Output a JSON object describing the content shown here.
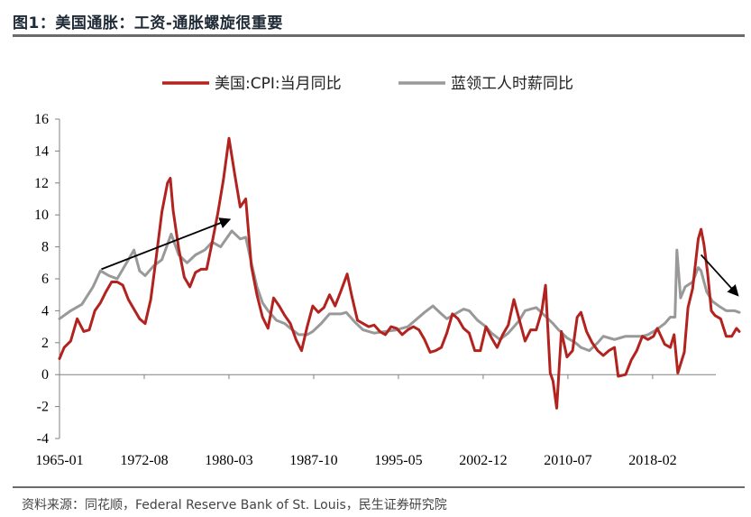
{
  "header": {
    "title": "图1：美国通胀：工资-通胀螺旋很重要"
  },
  "footer": {
    "source": "资料来源：同花顺，Federal Reserve Bank of St. Louis，民生证券研究院"
  },
  "colors": {
    "cpi": "#b2231f",
    "wage": "#999999",
    "arrow": "#000000"
  },
  "chart_data": {
    "type": "line",
    "title": "",
    "xlabel": "",
    "ylabel": "",
    "ylim": [
      -4,
      16
    ],
    "yticks": [
      -4,
      -2,
      0,
      2,
      4,
      6,
      8,
      10,
      12,
      14,
      16
    ],
    "xlim": [
      "1965-01",
      "2023-06"
    ],
    "xticks": [
      "1965-01",
      "1972-08",
      "1980-03",
      "1987-10",
      "1995-05",
      "2002-12",
      "2010-07",
      "2018-02"
    ],
    "legend": "top",
    "grid": false,
    "series": [
      {
        "name": "美国:CPI:当月同比",
        "color": "#b2231f",
        "points": [
          [
            "1965-01",
            1.0
          ],
          [
            "1965-06",
            1.7
          ],
          [
            "1966-01",
            2.1
          ],
          [
            "1966-08",
            3.5
          ],
          [
            "1967-03",
            2.7
          ],
          [
            "1967-09",
            2.8
          ],
          [
            "1968-03",
            4.0
          ],
          [
            "1968-09",
            4.5
          ],
          [
            "1969-03",
            5.2
          ],
          [
            "1969-09",
            5.8
          ],
          [
            "1970-03",
            5.8
          ],
          [
            "1970-09",
            5.6
          ],
          [
            "1971-03",
            4.7
          ],
          [
            "1971-09",
            4.1
          ],
          [
            "1972-03",
            3.5
          ],
          [
            "1972-09",
            3.2
          ],
          [
            "1973-03",
            4.7
          ],
          [
            "1973-09",
            7.4
          ],
          [
            "1974-03",
            10.2
          ],
          [
            "1974-09",
            12.0
          ],
          [
            "1974-12",
            12.3
          ],
          [
            "1975-03",
            10.3
          ],
          [
            "1975-09",
            7.9
          ],
          [
            "1976-03",
            6.1
          ],
          [
            "1976-09",
            5.5
          ],
          [
            "1977-03",
            6.4
          ],
          [
            "1977-09",
            6.6
          ],
          [
            "1978-03",
            6.6
          ],
          [
            "1978-09",
            8.3
          ],
          [
            "1979-03",
            10.1
          ],
          [
            "1979-09",
            12.2
          ],
          [
            "1980-03",
            14.8
          ],
          [
            "1980-09",
            12.6
          ],
          [
            "1981-03",
            10.5
          ],
          [
            "1981-09",
            11.0
          ],
          [
            "1982-03",
            6.8
          ],
          [
            "1982-09",
            5.0
          ],
          [
            "1983-03",
            3.6
          ],
          [
            "1983-09",
            2.9
          ],
          [
            "1984-03",
            4.8
          ],
          [
            "1984-09",
            4.3
          ],
          [
            "1985-03",
            3.7
          ],
          [
            "1985-09",
            3.2
          ],
          [
            "1986-03",
            2.2
          ],
          [
            "1986-09",
            1.5
          ],
          [
            "1987-03",
            3.0
          ],
          [
            "1987-09",
            4.3
          ],
          [
            "1988-03",
            3.9
          ],
          [
            "1988-09",
            4.2
          ],
          [
            "1989-03",
            5.0
          ],
          [
            "1989-09",
            4.3
          ],
          [
            "1990-03",
            5.2
          ],
          [
            "1990-10",
            6.3
          ],
          [
            "1991-03",
            4.9
          ],
          [
            "1991-09",
            3.4
          ],
          [
            "1992-03",
            3.2
          ],
          [
            "1992-09",
            3.0
          ],
          [
            "1993-03",
            3.1
          ],
          [
            "1993-09",
            2.7
          ],
          [
            "1994-03",
            2.5
          ],
          [
            "1994-09",
            3.0
          ],
          [
            "1995-03",
            2.9
          ],
          [
            "1995-09",
            2.5
          ],
          [
            "1996-03",
            2.8
          ],
          [
            "1996-09",
            3.0
          ],
          [
            "1997-03",
            2.8
          ],
          [
            "1997-09",
            2.2
          ],
          [
            "1998-03",
            1.4
          ],
          [
            "1998-09",
            1.5
          ],
          [
            "1999-03",
            1.7
          ],
          [
            "1999-09",
            2.6
          ],
          [
            "2000-03",
            3.8
          ],
          [
            "2000-09",
            3.5
          ],
          [
            "2001-03",
            2.9
          ],
          [
            "2001-09",
            2.6
          ],
          [
            "2002-03",
            1.5
          ],
          [
            "2002-09",
            1.5
          ],
          [
            "2003-03",
            3.0
          ],
          [
            "2003-09",
            2.3
          ],
          [
            "2004-03",
            1.7
          ],
          [
            "2004-09",
            2.5
          ],
          [
            "2005-03",
            3.1
          ],
          [
            "2005-09",
            4.7
          ],
          [
            "2006-03",
            3.4
          ],
          [
            "2006-09",
            2.1
          ],
          [
            "2007-03",
            2.8
          ],
          [
            "2007-09",
            2.8
          ],
          [
            "2008-03",
            4.0
          ],
          [
            "2008-07",
            5.6
          ],
          [
            "2008-12",
            0.1
          ],
          [
            "2009-03",
            -0.4
          ],
          [
            "2009-07",
            -2.1
          ],
          [
            "2009-12",
            2.7
          ],
          [
            "2010-06",
            1.1
          ],
          [
            "2010-12",
            1.5
          ],
          [
            "2011-05",
            3.6
          ],
          [
            "2011-09",
            3.9
          ],
          [
            "2012-03",
            2.7
          ],
          [
            "2012-09",
            2.0
          ],
          [
            "2013-03",
            1.5
          ],
          [
            "2013-09",
            1.2
          ],
          [
            "2014-03",
            1.5
          ],
          [
            "2014-09",
            1.7
          ],
          [
            "2015-01",
            -0.1
          ],
          [
            "2015-09",
            0.0
          ],
          [
            "2016-03",
            0.9
          ],
          [
            "2016-09",
            1.5
          ],
          [
            "2017-03",
            2.4
          ],
          [
            "2017-09",
            2.2
          ],
          [
            "2018-03",
            2.4
          ],
          [
            "2018-07",
            2.9
          ],
          [
            "2019-03",
            1.9
          ],
          [
            "2019-09",
            1.7
          ],
          [
            "2020-01",
            2.5
          ],
          [
            "2020-05",
            0.1
          ],
          [
            "2020-12",
            1.4
          ],
          [
            "2021-04",
            4.2
          ],
          [
            "2021-09",
            5.4
          ],
          [
            "2022-03",
            8.5
          ],
          [
            "2022-06",
            9.1
          ],
          [
            "2022-09",
            8.2
          ],
          [
            "2023-01",
            6.4
          ],
          [
            "2023-05",
            4.0
          ],
          [
            "2023-09",
            3.7
          ],
          [
            "2024-03",
            3.5
          ],
          [
            "2024-09",
            2.4
          ],
          [
            "2025-03",
            2.4
          ],
          [
            "2025-08",
            2.9
          ],
          [
            "2025-11",
            2.7
          ]
        ]
      },
      {
        "name": "蓝领工人时薪同比",
        "color": "#999999",
        "points": [
          [
            "1965-01",
            3.5
          ],
          [
            "1966-01",
            4.0
          ],
          [
            "1967-01",
            4.4
          ],
          [
            "1968-01",
            5.5
          ],
          [
            "1968-09",
            6.5
          ],
          [
            "1969-06",
            6.2
          ],
          [
            "1970-03",
            6.0
          ],
          [
            "1971-01",
            7.0
          ],
          [
            "1971-09",
            7.8
          ],
          [
            "1972-03",
            6.5
          ],
          [
            "1972-09",
            6.2
          ],
          [
            "1973-06",
            6.8
          ],
          [
            "1974-03",
            7.2
          ],
          [
            "1975-01",
            8.8
          ],
          [
            "1975-09",
            7.5
          ],
          [
            "1976-06",
            7.0
          ],
          [
            "1977-03",
            7.5
          ],
          [
            "1978-01",
            7.8
          ],
          [
            "1978-09",
            8.3
          ],
          [
            "1979-06",
            8.0
          ],
          [
            "1980-06",
            9.0
          ],
          [
            "1981-03",
            8.5
          ],
          [
            "1981-09",
            8.6
          ],
          [
            "1982-03",
            7.0
          ],
          [
            "1982-09",
            5.5
          ],
          [
            "1983-03",
            4.5
          ],
          [
            "1983-09",
            4.0
          ],
          [
            "1984-06",
            3.4
          ],
          [
            "1985-03",
            3.2
          ],
          [
            "1985-09",
            2.9
          ],
          [
            "1986-06",
            2.5
          ],
          [
            "1987-03",
            2.5
          ],
          [
            "1987-09",
            2.7
          ],
          [
            "1988-06",
            3.2
          ],
          [
            "1989-03",
            3.8
          ],
          [
            "1990-03",
            3.8
          ],
          [
            "1990-09",
            3.9
          ],
          [
            "1991-06",
            3.3
          ],
          [
            "1992-03",
            2.8
          ],
          [
            "1993-03",
            2.6
          ],
          [
            "1994-03",
            2.7
          ],
          [
            "1995-03",
            2.8
          ],
          [
            "1996-03",
            3.0
          ],
          [
            "1997-01",
            3.5
          ],
          [
            "1997-09",
            3.9
          ],
          [
            "1998-06",
            4.3
          ],
          [
            "1999-03",
            3.8
          ],
          [
            "1999-09",
            3.5
          ],
          [
            "2000-06",
            3.8
          ],
          [
            "2001-03",
            4.1
          ],
          [
            "2001-09",
            4.0
          ],
          [
            "2002-06",
            3.4
          ],
          [
            "2003-03",
            3.0
          ],
          [
            "2003-09",
            2.6
          ],
          [
            "2004-06",
            2.2
          ],
          [
            "2005-03",
            2.6
          ],
          [
            "2006-03",
            3.4
          ],
          [
            "2006-09",
            4.0
          ],
          [
            "2007-03",
            4.1
          ],
          [
            "2007-09",
            4.2
          ],
          [
            "2008-06",
            3.7
          ],
          [
            "2009-03",
            3.2
          ],
          [
            "2009-09",
            2.8
          ],
          [
            "2010-06",
            2.3
          ],
          [
            "2011-03",
            2.0
          ],
          [
            "2011-09",
            1.7
          ],
          [
            "2012-06",
            1.5
          ],
          [
            "2013-03",
            2.0
          ],
          [
            "2013-09",
            2.4
          ],
          [
            "2014-03",
            2.3
          ],
          [
            "2014-09",
            2.2
          ],
          [
            "2015-03",
            2.3
          ],
          [
            "2015-09",
            2.4
          ],
          [
            "2016-06",
            2.4
          ],
          [
            "2017-03",
            2.4
          ],
          [
            "2017-09",
            2.5
          ],
          [
            "2018-06",
            2.8
          ],
          [
            "2019-03",
            3.2
          ],
          [
            "2019-09",
            3.6
          ],
          [
            "2020-02",
            3.6
          ],
          [
            "2020-04",
            7.8
          ],
          [
            "2020-08",
            4.8
          ],
          [
            "2021-01",
            5.5
          ],
          [
            "2021-09",
            5.8
          ],
          [
            "2022-03",
            6.7
          ],
          [
            "2022-06",
            6.5
          ],
          [
            "2022-12",
            5.2
          ],
          [
            "2023-06",
            4.6
          ],
          [
            "2024-01",
            4.3
          ],
          [
            "2024-09",
            4.0
          ],
          [
            "2025-06",
            4.0
          ],
          [
            "2025-11",
            3.9
          ]
        ]
      }
    ],
    "annotations": [
      {
        "type": "arrow",
        "from": [
          "1968-10",
          6.6
        ],
        "to": [
          "1980-03",
          9.7
        ]
      },
      {
        "type": "arrow",
        "from": [
          "2022-06",
          7.5
        ],
        "to": [
          "2025-09",
          5.0
        ]
      }
    ]
  }
}
